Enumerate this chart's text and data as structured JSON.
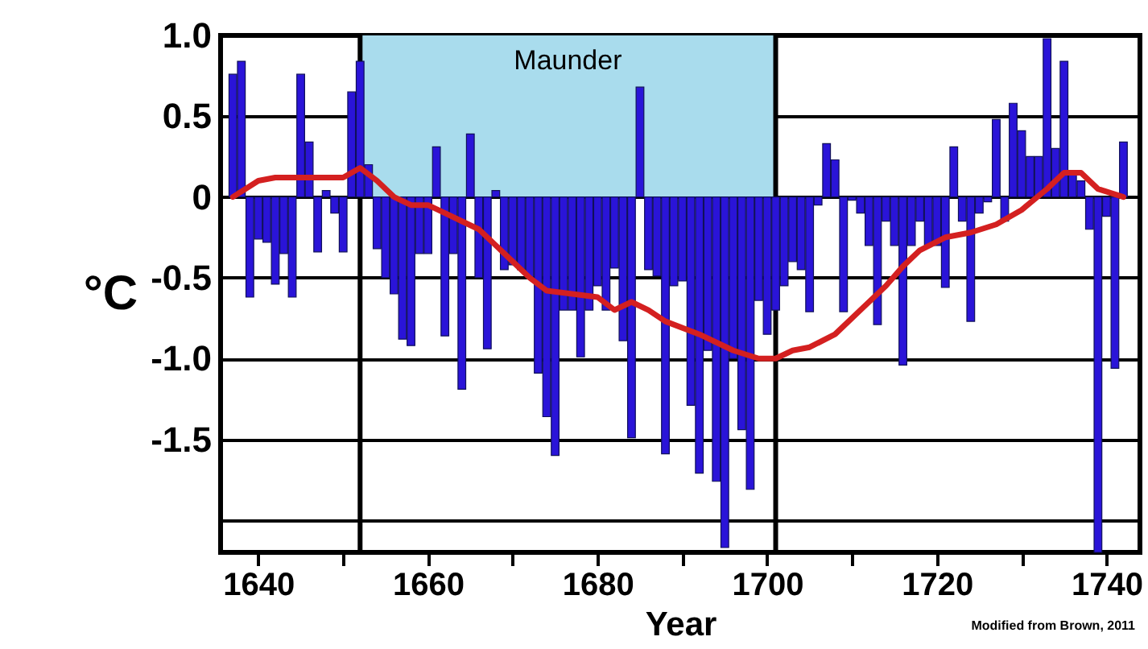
{
  "chart_data": {
    "type": "bar",
    "xlabel": "Year",
    "ylabel": "°C",
    "xlim": [
      1636.5,
      1743
    ],
    "xticks": [
      1640,
      {
        "value": 1650,
        "label": null
      },
      1660,
      {
        "value": 1670,
        "label": null
      },
      1680,
      {
        "value": 1690,
        "label": null
      },
      1700,
      {
        "value": 1710,
        "label": null
      },
      1720,
      {
        "value": 1730,
        "label": null
      },
      1740
    ],
    "ylim": [
      -2.2,
      1.0
    ],
    "yticks": [
      {
        "value": 1.0,
        "label": "1.0"
      },
      0.5,
      0,
      -0.5,
      {
        "value": -1.0,
        "label": "-1.0"
      },
      -1.5,
      {
        "value": -2.0,
        "label": null
      }
    ],
    "grid": "y",
    "series": [
      {
        "color": "#2a14d8",
        "x": [
          1637,
          1638,
          1639,
          1640,
          1641,
          1642,
          1643,
          1644,
          1645,
          1646,
          1647,
          1648,
          1649,
          1650,
          1651,
          1652,
          1653,
          1654,
          1655,
          1656,
          1657,
          1658,
          1659,
          1660,
          1661,
          1662,
          1663,
          1664,
          1665,
          1666,
          1667,
          1668,
          1669,
          1670,
          1671,
          1672,
          1673,
          1674,
          1675,
          1676,
          1677,
          1678,
          1679,
          1680,
          1681,
          1682,
          1683,
          1684,
          1685,
          1686,
          1687,
          1688,
          1689,
          1690,
          1691,
          1692,
          1693,
          1694,
          1695,
          1696,
          1697,
          1698,
          1699,
          1700,
          1701,
          1702,
          1703,
          1704,
          1705,
          1706,
          1707,
          1708,
          1709,
          1710,
          1711,
          1712,
          1713,
          1714,
          1715,
          1716,
          1717,
          1718,
          1719,
          1720,
          1721,
          1722,
          1723,
          1724,
          1725,
          1726,
          1727,
          1728,
          1729,
          1730,
          1731,
          1732,
          1733,
          1734,
          1735,
          1736,
          1737,
          1738,
          1739,
          1740,
          1741,
          1742
        ],
        "values": [
          0.76,
          0.84,
          -0.62,
          -0.26,
          -0.28,
          -0.54,
          -0.35,
          -0.62,
          0.76,
          0.34,
          -0.34,
          0.04,
          -0.1,
          -0.34,
          0.65,
          0.84,
          0.2,
          -0.32,
          -0.5,
          -0.6,
          -0.88,
          -0.92,
          -0.35,
          -0.35,
          0.31,
          -0.86,
          -0.35,
          -1.19,
          0.39,
          -0.5,
          -0.94,
          0.04,
          -0.45,
          -0.42,
          -0.45,
          -0.5,
          -1.09,
          -1.36,
          -1.6,
          -0.7,
          -0.7,
          -0.99,
          -0.7,
          -0.55,
          -0.7,
          -0.44,
          -0.89,
          -1.49,
          0.68,
          -0.45,
          -0.49,
          -1.59,
          -0.55,
          -0.52,
          -1.29,
          -1.71,
          -0.95,
          -1.76,
          -2.17,
          -1.0,
          -1.44,
          -1.81,
          -0.64,
          -0.85,
          -0.7,
          -0.55,
          -0.4,
          -0.45,
          -0.71,
          -0.05,
          0.33,
          0.23,
          -0.71,
          -0.02,
          -0.1,
          -0.3,
          -0.79,
          -0.15,
          -0.3,
          -1.04,
          -0.3,
          -0.15,
          -0.3,
          -0.3,
          -0.56,
          0.31,
          -0.15,
          -0.77,
          -0.1,
          -0.03,
          0.48,
          -0.15,
          0.58,
          0.41,
          0.25,
          0.25,
          0.98,
          0.3,
          0.84,
          0.15,
          0.1,
          -0.2,
          -2.2,
          -0.12,
          -1.06,
          0.34
        ]
      },
      {
        "type": "line",
        "color": "#d42020",
        "x": [
          1637,
          1640,
          1642,
          1646,
          1650,
          1652,
          1654,
          1656,
          1658,
          1660,
          1662,
          1664,
          1666,
          1668,
          1670,
          1672,
          1674,
          1677,
          1680,
          1682,
          1684,
          1686,
          1688,
          1692,
          1696,
          1699,
          1701,
          1703,
          1705,
          1708,
          1711,
          1714,
          1716,
          1718,
          1721,
          1724,
          1727,
          1730,
          1733,
          1735,
          1737,
          1739,
          1742
        ],
        "values": [
          0,
          0.1,
          0.12,
          0.12,
          0.12,
          0.18,
          0.1,
          0,
          -0.05,
          -0.05,
          -0.1,
          -0.15,
          -0.2,
          -0.3,
          -0.4,
          -0.5,
          -0.58,
          -0.6,
          -0.62,
          -0.7,
          -0.65,
          -0.7,
          -0.77,
          -0.85,
          -0.95,
          -1.0,
          -1.0,
          -0.95,
          -0.93,
          -0.85,
          -0.7,
          -0.55,
          -0.43,
          -0.33,
          -0.25,
          -0.22,
          -0.17,
          -0.08,
          0.05,
          0.15,
          0.15,
          0.05,
          0.0
        ]
      }
    ],
    "bands": [
      {
        "axis": "x",
        "from": 1652,
        "to": 1701,
        "label": "Maunder",
        "color": "#a9dced"
      }
    ],
    "ref_lines": [
      {
        "axis": "x",
        "value": 1652,
        "color": "#000000"
      },
      {
        "axis": "x",
        "value": 1701,
        "color": "#000000"
      }
    ],
    "annotations": [
      "Modified from Brown, 2011"
    ]
  }
}
